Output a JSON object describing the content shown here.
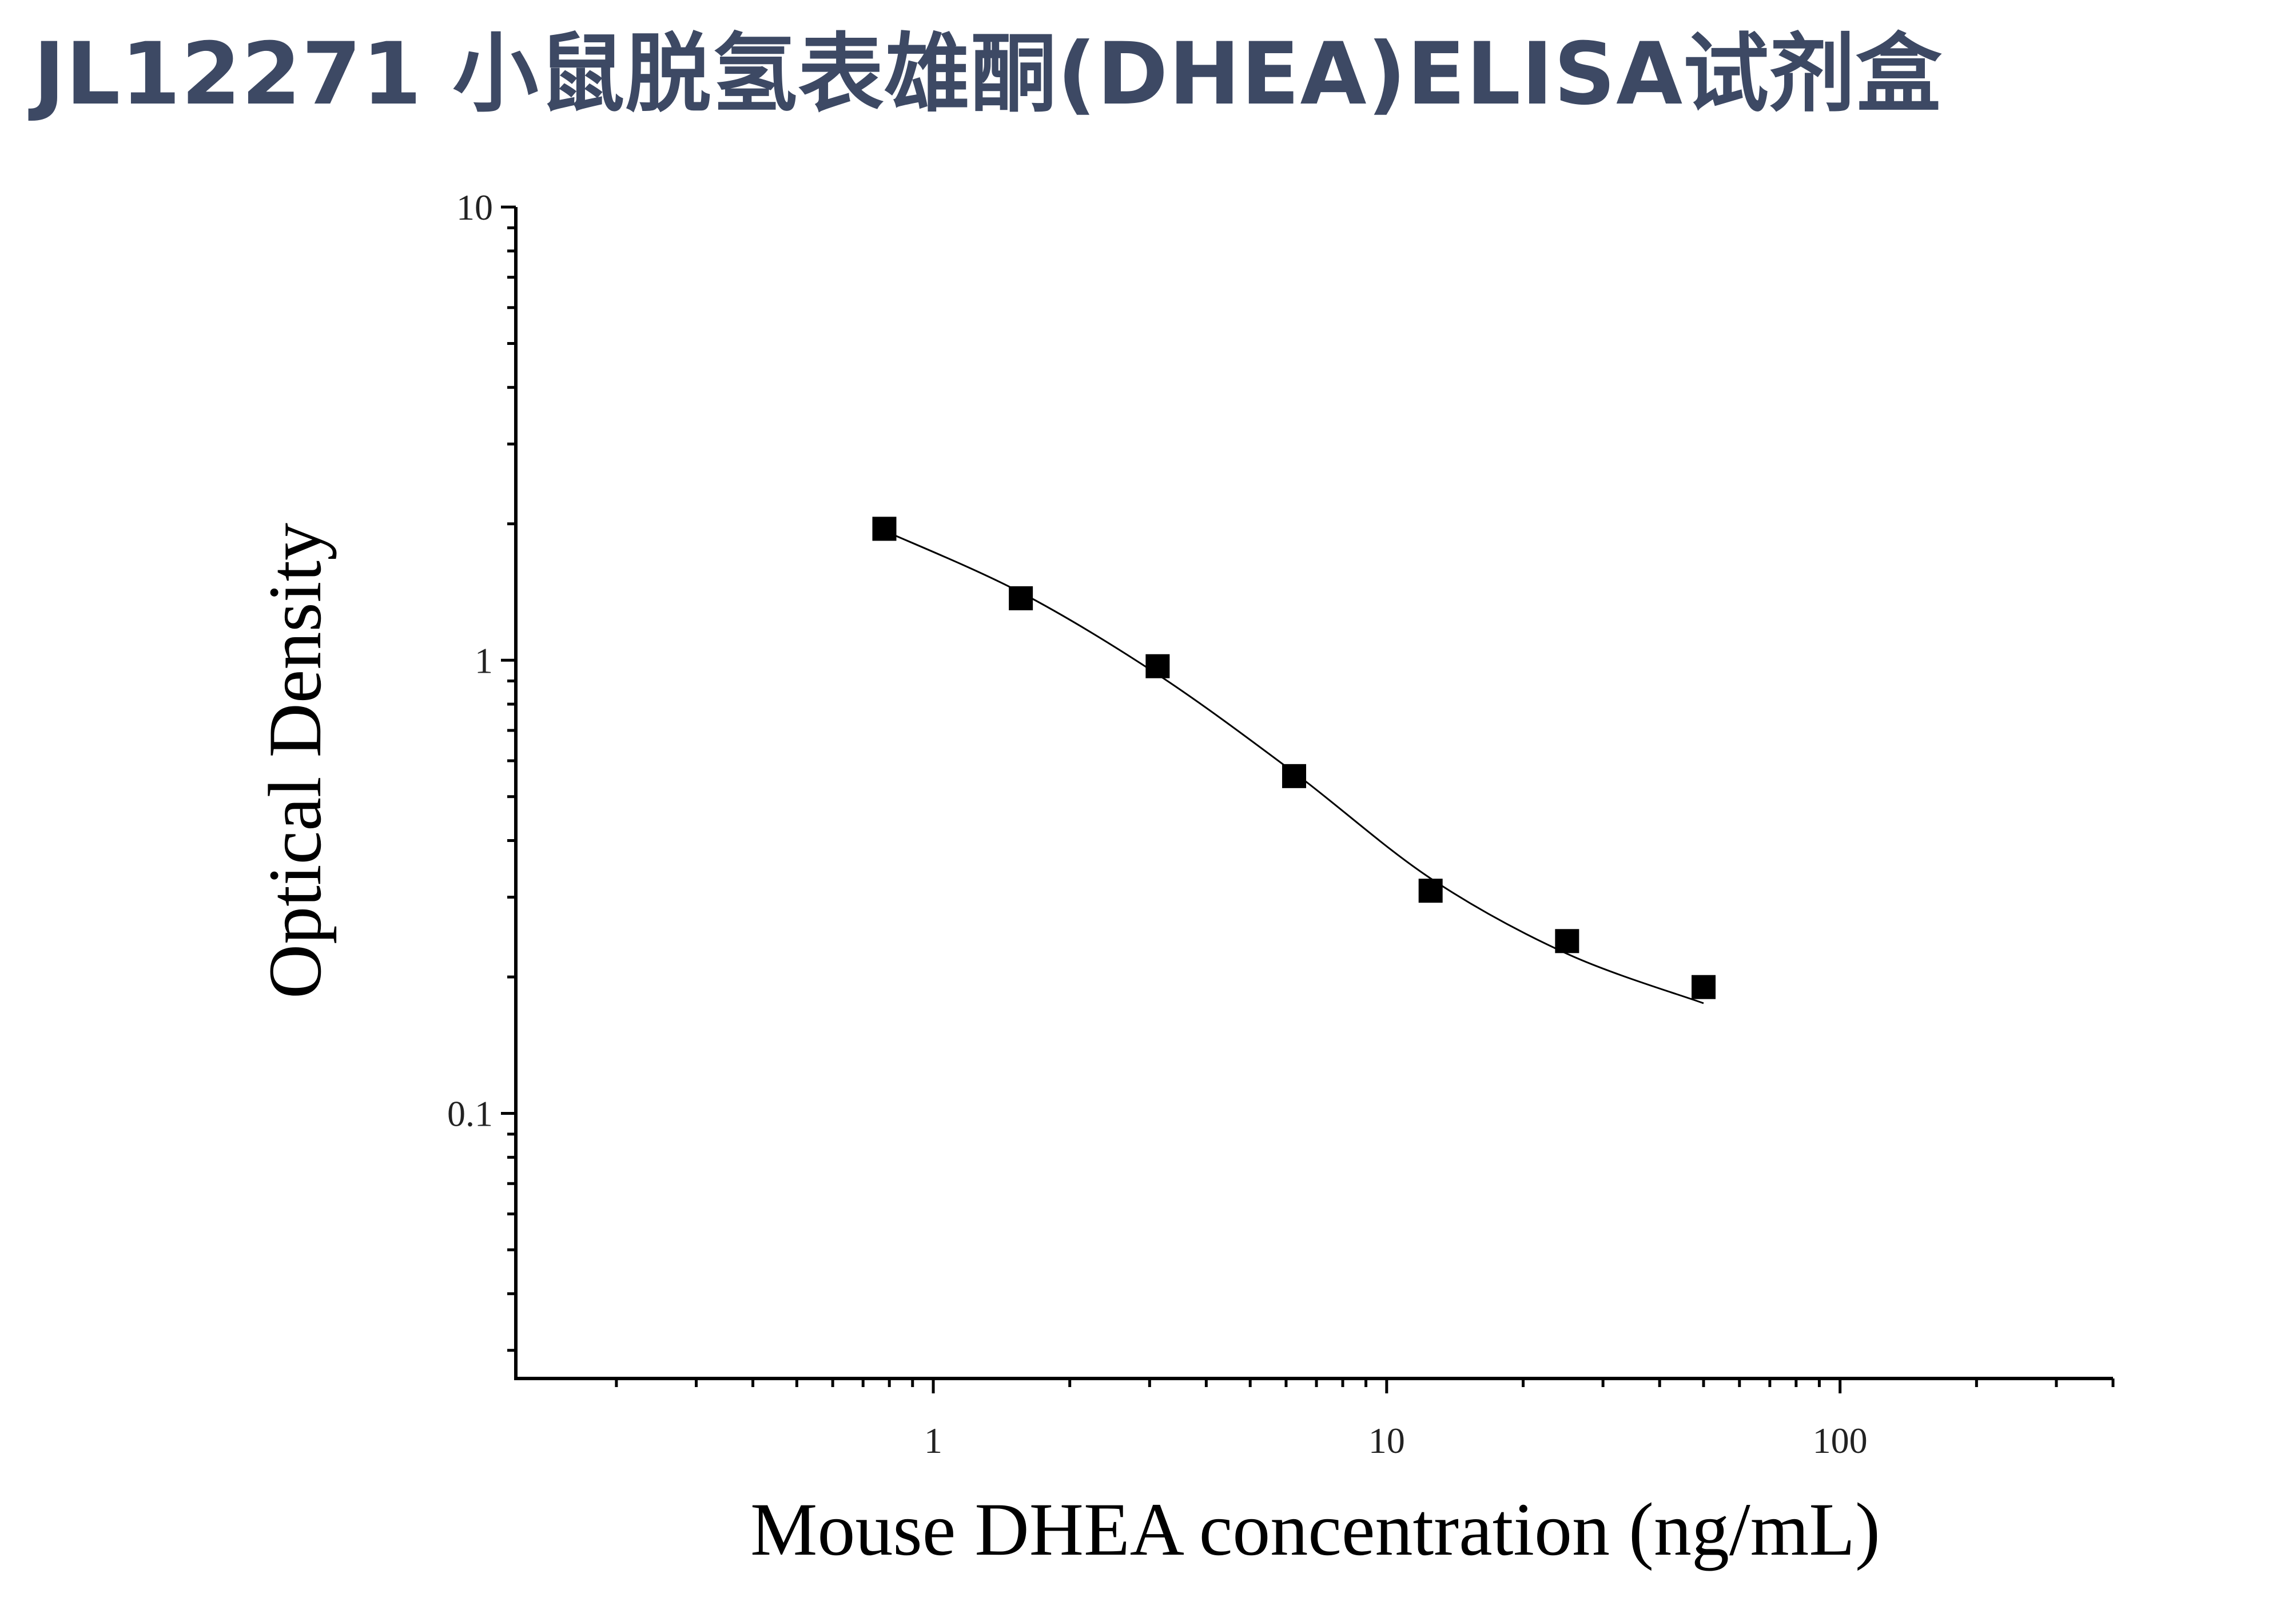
{
  "title": "JL12271 小鼠脱氢表雄酮(DHEA)ELISA试剂盒",
  "chart_data": {
    "type": "scatter",
    "xlabel": "Mouse DHEA concentration (ng/mL)",
    "ylabel": "Optical Density",
    "x_scale": "log",
    "y_scale": "log",
    "xlim": [
      0.12,
      400
    ],
    "ylim": [
      0.026,
      10
    ],
    "x_ticks": [
      {
        "value": 1,
        "label": "1"
      },
      {
        "value": 10,
        "label": "10"
      },
      {
        "value": 100,
        "label": "100"
      }
    ],
    "y_ticks": [
      {
        "value": 0.1,
        "label": "0.1"
      },
      {
        "value": 1,
        "label": "1"
      },
      {
        "value": 10,
        "label": "10"
      }
    ],
    "grid": false,
    "series": [
      {
        "type": "scatter",
        "marker": "square",
        "color": "#000000",
        "x": [
          0.78,
          1.56,
          3.125,
          6.25,
          12.5,
          25,
          50
        ],
        "y": [
          1.95,
          1.37,
          0.97,
          0.555,
          0.31,
          0.24,
          0.19
        ]
      },
      {
        "type": "line",
        "color": "#000000",
        "x": [
          0.78,
          1.56,
          3.125,
          6.25,
          12.5,
          25,
          50
        ],
        "y": [
          1.93,
          1.41,
          0.93,
          0.565,
          0.33,
          0.225,
          0.175
        ]
      }
    ]
  }
}
